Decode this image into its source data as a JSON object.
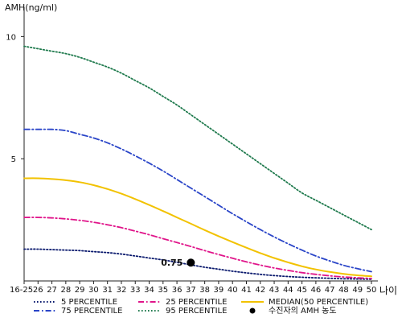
{
  "chart_data": {
    "type": "line",
    "title": "",
    "ylabel": "AMH(ng/ml)",
    "xlabel": "나이",
    "ylim": [
      0,
      11
    ],
    "yticks": [
      5,
      10
    ],
    "x": [
      "16-25",
      "26",
      "27",
      "28",
      "29",
      "30",
      "31",
      "32",
      "33",
      "34",
      "35",
      "36",
      "37",
      "38",
      "39",
      "40",
      "41",
      "42",
      "43",
      "44",
      "45",
      "46",
      "47",
      "48",
      "49",
      "50"
    ],
    "series": [
      {
        "name": "5 PERCENTILE",
        "color": "#0b1a6e",
        "dash": "dot",
        "values": [
          1.3,
          1.3,
          1.28,
          1.26,
          1.24,
          1.2,
          1.16,
          1.1,
          1.02,
          0.94,
          0.86,
          0.76,
          0.66,
          0.56,
          0.48,
          0.4,
          0.33,
          0.27,
          0.22,
          0.18,
          0.15,
          0.13,
          0.11,
          0.09,
          0.08,
          0.07
        ]
      },
      {
        "name": "25 PERCENTILE",
        "color": "#e0158a",
        "dash": "dashdot",
        "values": [
          2.6,
          2.6,
          2.58,
          2.54,
          2.48,
          2.4,
          2.3,
          2.18,
          2.04,
          1.89,
          1.73,
          1.57,
          1.41,
          1.24,
          1.08,
          0.93,
          0.78,
          0.65,
          0.53,
          0.43,
          0.34,
          0.27,
          0.21,
          0.16,
          0.13,
          0.1
        ]
      },
      {
        "name": "MEDIAN(50 PERCENTILE)",
        "color": "#f2c200",
        "dash": "solid",
        "values": [
          4.2,
          4.2,
          4.17,
          4.12,
          4.04,
          3.92,
          3.76,
          3.57,
          3.35,
          3.11,
          2.86,
          2.6,
          2.34,
          2.08,
          1.83,
          1.59,
          1.36,
          1.14,
          0.94,
          0.76,
          0.6,
          0.47,
          0.37,
          0.29,
          0.23,
          0.19
        ]
      },
      {
        "name": "75 PERCENTILE",
        "color": "#2a45c8",
        "dash": "dashdot",
        "values": [
          6.2,
          6.2,
          6.2,
          6.15,
          6.0,
          5.85,
          5.65,
          5.4,
          5.12,
          4.82,
          4.5,
          4.15,
          3.8,
          3.45,
          3.1,
          2.75,
          2.42,
          2.1,
          1.8,
          1.52,
          1.26,
          1.02,
          0.82,
          0.64,
          0.5,
          0.38
        ]
      },
      {
        "name": "95 PERCENTILE",
        "color": "#1f7a4d",
        "dash": "dot",
        "values": [
          9.6,
          9.5,
          9.4,
          9.3,
          9.15,
          8.95,
          8.75,
          8.5,
          8.2,
          7.9,
          7.55,
          7.2,
          6.8,
          6.4,
          6.0,
          5.6,
          5.2,
          4.8,
          4.4,
          4.0,
          3.6,
          3.3,
          3.0,
          2.7,
          2.4,
          2.1
        ]
      }
    ],
    "point": {
      "name": "수진자의 AMH 농도",
      "x": "37",
      "y": 0.75,
      "label": "0.75"
    }
  },
  "legend": [
    {
      "label": "5 PERCENTILE",
      "color": "#0b1a6e",
      "dash": "dot",
      "kind": "line"
    },
    {
      "label": "25 PERCENTILE",
      "color": "#e0158a",
      "dash": "dashdot",
      "kind": "line"
    },
    {
      "label": "MEDIAN(50 PERCENTILE)",
      "color": "#f2c200",
      "dash": "solid",
      "kind": "line"
    },
    {
      "label": "75 PERCENTILE",
      "color": "#2a45c8",
      "dash": "dashdot",
      "kind": "line"
    },
    {
      "label": "95 PERCENTILE",
      "color": "#1f7a4d",
      "dash": "dot",
      "kind": "line"
    },
    {
      "label": "수진자의 AMH 농도",
      "color": "#000000",
      "kind": "marker"
    }
  ]
}
